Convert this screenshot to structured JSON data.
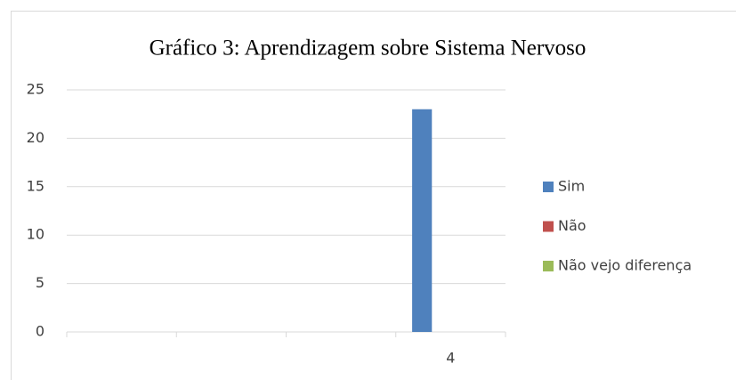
{
  "chart_data": {
    "type": "bar",
    "title": "Gráfico 3: Aprendizagem sobre Sistema Nervoso",
    "categories": [
      null,
      null,
      null,
      "4"
    ],
    "series": [
      {
        "name": "Sim",
        "color": "#4f81bd",
        "values": [
          null,
          null,
          null,
          23
        ]
      },
      {
        "name": "Não",
        "color": "#c0504d",
        "values": [
          null,
          null,
          null,
          0
        ]
      },
      {
        "name": "Não vejo diferença",
        "color": "#9bbb59",
        "values": [
          null,
          null,
          null,
          0
        ]
      }
    ],
    "ylim": [
      0,
      25
    ],
    "yticks": [
      0,
      5,
      10,
      15,
      20,
      25
    ],
    "grid": true,
    "legend": "right"
  }
}
